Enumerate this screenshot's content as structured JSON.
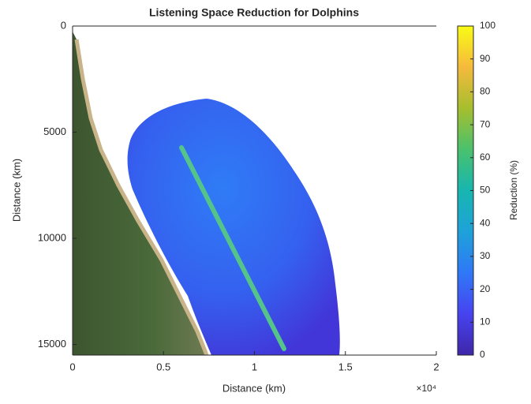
{
  "chart_data": {
    "type": "image",
    "title": "Listening Space Reduction for Dolphins",
    "x_label": "Distance (km)",
    "y_label": "Distance (km)",
    "x_multiplier": "×10⁴",
    "xlim": [
      0,
      20000
    ],
    "xticks": [
      0,
      {
        "value": 5000,
        "label": "0.5"
      },
      {
        "value": 10000,
        "label": "1"
      },
      {
        "value": 15000,
        "label": "1.5"
      },
      {
        "value": 20000,
        "label": "2"
      }
    ],
    "ylim": [
      0,
      15500
    ],
    "y_reversed": true,
    "yticks": [
      0,
      5000,
      10000,
      15000
    ],
    "colorbar": {
      "label": "Reduction (%)",
      "lim": [
        0,
        100
      ],
      "ticks": [
        0,
        10,
        20,
        30,
        40,
        50,
        60,
        70,
        80,
        90,
        100
      ],
      "colormap": [
        "#3e26a8",
        "#4743f0",
        "#2f78f7",
        "#1ea2d9",
        "#17b6b0",
        "#4ac16d",
        "#a6be2e",
        "#f5ba3d",
        "#f9fb15"
      ]
    }
  }
}
